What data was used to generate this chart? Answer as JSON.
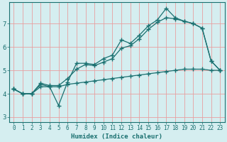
{
  "title": "",
  "xlabel": "Humidex (Indice chaleur)",
  "ylabel": "",
  "bg_color": "#d5eef0",
  "grid_color": "#e8a0a0",
  "line_color": "#1a7070",
  "marker": "+",
  "markersize": 4,
  "linewidth": 0.9,
  "xlim": [
    -0.5,
    23.5
  ],
  "ylim": [
    2.8,
    7.9
  ],
  "xticks": [
    0,
    1,
    2,
    3,
    4,
    5,
    6,
    7,
    8,
    9,
    10,
    11,
    12,
    13,
    14,
    15,
    16,
    17,
    18,
    19,
    20,
    21,
    22,
    23
  ],
  "yticks": [
    3,
    4,
    5,
    6,
    7
  ],
  "line1_x": [
    0,
    1,
    2,
    3,
    4,
    5,
    6,
    7,
    8,
    9,
    10,
    11,
    12,
    13,
    14,
    15,
    16,
    17,
    18,
    19,
    20,
    21,
    22,
    23
  ],
  "line1_y": [
    4.2,
    4.0,
    4.0,
    4.4,
    4.3,
    3.5,
    4.5,
    5.3,
    5.3,
    5.25,
    5.5,
    5.65,
    6.3,
    6.15,
    6.5,
    6.9,
    7.15,
    7.65,
    7.25,
    7.1,
    7.0,
    6.8,
    5.4,
    5.0
  ],
  "line2_x": [
    0,
    1,
    2,
    3,
    4,
    5,
    6,
    7,
    8,
    9,
    10,
    11,
    12,
    13,
    14,
    15,
    16,
    17,
    18,
    19,
    20,
    21,
    22,
    23
  ],
  "line2_y": [
    4.2,
    4.0,
    4.0,
    4.45,
    4.35,
    4.35,
    4.65,
    5.05,
    5.25,
    5.2,
    5.35,
    5.5,
    5.95,
    6.05,
    6.35,
    6.75,
    7.05,
    7.25,
    7.2,
    7.1,
    7.0,
    6.8,
    5.4,
    5.0
  ],
  "line3_x": [
    0,
    1,
    2,
    3,
    4,
    5,
    6,
    7,
    8,
    9,
    10,
    11,
    12,
    13,
    14,
    15,
    16,
    17,
    18,
    19,
    20,
    21,
    22,
    23
  ],
  "line3_y": [
    4.2,
    4.0,
    4.0,
    4.3,
    4.3,
    4.3,
    4.4,
    4.45,
    4.5,
    4.55,
    4.6,
    4.65,
    4.7,
    4.75,
    4.8,
    4.85,
    4.9,
    4.95,
    5.0,
    5.05,
    5.05,
    5.05,
    5.0,
    5.0
  ],
  "xlabel_fontsize": 6.5,
  "tick_fontsize_x": 5.5,
  "tick_fontsize_y": 6.5
}
